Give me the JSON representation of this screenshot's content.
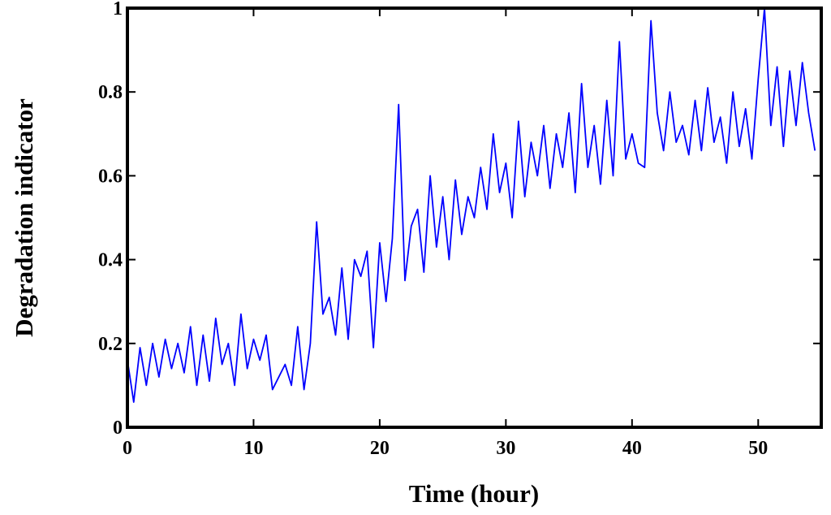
{
  "chart_data": {
    "type": "line",
    "x_label": "Time (hour)",
    "y_label": "Degradation indicator",
    "x": [
      0,
      0.5,
      1,
      1.5,
      2,
      2.5,
      3,
      3.5,
      4,
      4.5,
      5,
      5.5,
      6,
      6.5,
      7,
      7.5,
      8,
      8.5,
      9,
      9.5,
      10,
      10.5,
      11,
      11.5,
      12,
      12.5,
      13,
      13.5,
      14,
      14.5,
      15,
      15.5,
      16,
      16.5,
      17,
      17.5,
      18,
      18.5,
      19,
      19.5,
      20,
      20.5,
      21,
      21.5,
      22,
      22.5,
      23,
      23.5,
      24,
      24.5,
      25,
      25.5,
      26,
      26.5,
      27,
      27.5,
      28,
      28.5,
      29,
      29.5,
      30,
      30.5,
      31,
      31.5,
      32,
      32.5,
      33,
      33.5,
      34,
      34.5,
      35,
      35.5,
      36,
      36.5,
      37,
      37.5,
      38,
      38.5,
      39,
      39.5,
      40,
      40.5,
      41,
      41.5,
      42,
      42.5,
      43,
      43.5,
      44,
      44.5,
      45,
      45.5,
      46,
      46.5,
      47,
      47.5,
      48,
      48.5,
      49,
      49.5,
      50,
      50.5,
      51,
      51.5,
      52,
      52.5,
      53,
      53.5,
      54,
      54.5
    ],
    "series": [
      {
        "name": "Degradation indicator",
        "color": "#0000ff",
        "values": [
          0.16,
          0.06,
          0.19,
          0.1,
          0.2,
          0.12,
          0.21,
          0.14,
          0.2,
          0.13,
          0.24,
          0.1,
          0.22,
          0.11,
          0.26,
          0.15,
          0.2,
          0.1,
          0.27,
          0.14,
          0.21,
          0.16,
          0.22,
          0.09,
          0.12,
          0.15,
          0.1,
          0.24,
          0.09,
          0.2,
          0.49,
          0.27,
          0.31,
          0.22,
          0.38,
          0.21,
          0.4,
          0.36,
          0.42,
          0.19,
          0.44,
          0.3,
          0.45,
          0.77,
          0.35,
          0.48,
          0.52,
          0.37,
          0.6,
          0.43,
          0.55,
          0.4,
          0.59,
          0.46,
          0.55,
          0.5,
          0.62,
          0.52,
          0.7,
          0.56,
          0.63,
          0.5,
          0.73,
          0.55,
          0.68,
          0.6,
          0.72,
          0.57,
          0.7,
          0.62,
          0.75,
          0.56,
          0.82,
          0.62,
          0.72,
          0.58,
          0.78,
          0.6,
          0.92,
          0.64,
          0.7,
          0.63,
          0.62,
          0.97,
          0.75,
          0.66,
          0.8,
          0.68,
          0.72,
          0.65,
          0.78,
          0.66,
          0.81,
          0.68,
          0.74,
          0.63,
          0.8,
          0.67,
          0.76,
          0.64,
          0.83,
          1.0,
          0.72,
          0.86,
          0.67,
          0.85,
          0.72,
          0.87,
          0.75,
          0.66
        ]
      }
    ],
    "xlim": [
      0,
      55
    ],
    "xticks": [
      0,
      10,
      20,
      30,
      40,
      50
    ],
    "ylim": [
      0,
      1
    ],
    "yticks": [
      0,
      0.2,
      0.4,
      0.6,
      0.8,
      1
    ],
    "grid": false
  }
}
